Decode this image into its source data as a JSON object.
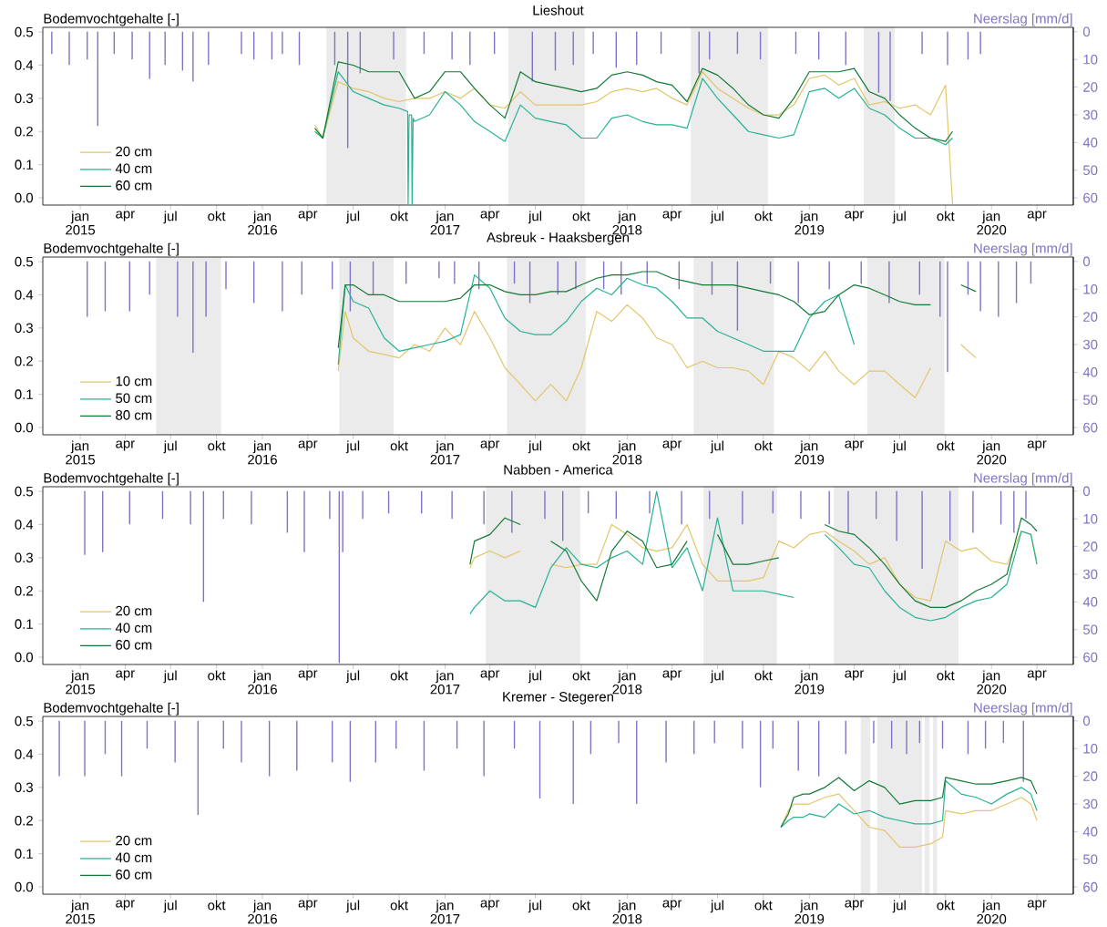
{
  "chart_data": [
    {
      "type": "line",
      "title": "Lieshout",
      "ylabel": "Bodemvochtgehalte [-]",
      "y2label": "Neerslag [mm/d]",
      "legend": "bottom left",
      "xlim": [
        "2014-10-18",
        "2020-06-13"
      ],
      "ylim": [
        -0.022,
        0.514
      ],
      "y2lim": [
        62.6,
        -1.6
      ],
      "xticks": [
        {
          "value": "2015-01",
          "label": "jan 2015"
        },
        {
          "value": "2015-04",
          "label": "apr"
        },
        {
          "value": "2015-07",
          "label": "jul"
        },
        {
          "value": "2015-10",
          "label": "okt"
        },
        {
          "value": "2016-01",
          "label": "jan 2016"
        },
        {
          "value": "2016-04",
          "label": "apr"
        },
        {
          "value": "2016-07",
          "label": "jul"
        },
        {
          "value": "2016-10",
          "label": "okt"
        },
        {
          "value": "2017-01",
          "label": "jan 2017"
        },
        {
          "value": "2017-04",
          "label": "apr"
        },
        {
          "value": "2017-07",
          "label": "jul"
        },
        {
          "value": "2017-10",
          "label": "okt"
        },
        {
          "value": "2018-01",
          "label": "jan 2018"
        },
        {
          "value": "2018-04",
          "label": "apr"
        },
        {
          "value": "2018-07",
          "label": "jul"
        },
        {
          "value": "2018-10",
          "label": "okt"
        },
        {
          "value": "2019-01",
          "label": "jan 2019"
        },
        {
          "value": "2019-04",
          "label": "apr"
        },
        {
          "value": "2019-07",
          "label": "jul"
        },
        {
          "value": "2019-10",
          "label": "okt"
        },
        {
          "value": "2020-01",
          "label": "jan 2020"
        },
        {
          "value": "2020-04",
          "label": "apr"
        }
      ],
      "yticks": [
        {
          "value": 0,
          "label": "0.0"
        },
        {
          "value": 0.1,
          "label": "0.1"
        },
        {
          "value": 0.2,
          "label": "0.2"
        },
        {
          "value": 0.3,
          "label": "0.3"
        },
        {
          "value": 0.4,
          "label": "0.4"
        },
        {
          "value": 0.5,
          "label": "0.5"
        }
      ],
      "y2ticks": [
        0,
        10,
        20,
        30,
        40,
        50,
        60
      ],
      "bands": [
        {
          "axis": "x",
          "from": "2016-05-08",
          "to": "2016-10-15",
          "color": "#ebebeb"
        },
        {
          "axis": "x",
          "from": "2017-05-08",
          "to": "2017-10-08",
          "color": "#ebebeb"
        },
        {
          "axis": "x",
          "from": "2018-05-08",
          "to": "2018-10-10",
          "color": "#ebebeb"
        },
        {
          "axis": "x",
          "from": "2019-04-20",
          "to": "2019-06-21",
          "color": "#ebebeb"
        }
      ],
      "x": [
        "2016-04-15",
        "2016-05",
        "2016-06",
        "2016-07",
        "2016-08",
        "2016-09",
        "2016-10",
        "2016-11",
        "2016-12",
        "2017-01",
        "2017-02",
        "2017-03",
        "2017-04",
        "2017-05",
        "2017-06",
        "2017-07",
        "2017-08",
        "2017-09",
        "2017-10",
        "2017-11",
        "2017-12",
        "2018-01",
        "2018-02",
        "2018-03",
        "2018-04",
        "2018-05",
        "2018-06",
        "2018-07",
        "2018-08",
        "2018-09",
        "2018-10",
        "2018-11",
        "2018-12",
        "2019-01",
        "2019-02",
        "2019-03",
        "2019-04",
        "2019-05",
        "2019-06",
        "2019-07",
        "2019-08",
        "2019-09",
        "2019-10",
        "2019-10-15"
      ],
      "series": [
        {
          "name": "20 cm",
          "color": "#e3c56a",
          "values": [
            0.22,
            0.18,
            0.35,
            0.33,
            0.32,
            0.3,
            0.29,
            0.3,
            0.3,
            0.32,
            0.3,
            0.33,
            0.28,
            0.27,
            0.32,
            0.28,
            0.28,
            0.28,
            0.28,
            0.29,
            0.32,
            0.33,
            0.32,
            0.33,
            0.3,
            0.28,
            0.38,
            0.33,
            0.3,
            0.27,
            0.25,
            0.25,
            0.28,
            0.36,
            0.37,
            0.34,
            0.36,
            0.28,
            0.29,
            0.27,
            0.28,
            0.25,
            0.34,
            -0.02
          ]
        },
        {
          "name": "40 cm",
          "color": "#26b294",
          "x": [
            "2016-04-15",
            "2016-05",
            "2016-06",
            "2016-07",
            "2016-08",
            "2016-09",
            "2016-10",
            "2016-10-18",
            "2016-10-19",
            "2016-10-21",
            "2016-10-26",
            "2016-10-27",
            "2016-10-29",
            "2016-11",
            "2016-12",
            "2017-01",
            "2017-02",
            "2017-03",
            "2017-04",
            "2017-05",
            "2017-06",
            "2017-07",
            "2017-08",
            "2017-09",
            "2017-10",
            "2017-11",
            "2017-12",
            "2018-01",
            "2018-02",
            "2018-03",
            "2018-04",
            "2018-05",
            "2018-06",
            "2018-07",
            "2018-08",
            "2018-09",
            "2018-10",
            "2018-11",
            "2018-12",
            "2019-01",
            "2019-02",
            "2019-03",
            "2019-04",
            "2019-05",
            "2019-06",
            "2019-07",
            "2019-08",
            "2019-09",
            "2019-10",
            "2019-10-15"
          ],
          "values": [
            0.2,
            0.18,
            0.38,
            0.32,
            0.3,
            0.28,
            0.27,
            0.26,
            -0.02,
            0.25,
            0.25,
            -0.02,
            0.24,
            0.23,
            0.25,
            0.32,
            0.28,
            0.23,
            0.2,
            0.17,
            0.28,
            0.24,
            0.23,
            0.22,
            0.18,
            0.18,
            0.24,
            0.25,
            0.23,
            0.22,
            0.22,
            0.21,
            0.36,
            0.3,
            0.25,
            0.2,
            0.19,
            0.18,
            0.19,
            0.32,
            0.33,
            0.3,
            0.33,
            0.27,
            0.25,
            0.21,
            0.18,
            0.18,
            0.16,
            0.18
          ]
        },
        {
          "name": "60 cm",
          "color": "#137a35",
          "values": [
            0.21,
            0.18,
            0.41,
            0.4,
            0.38,
            0.38,
            0.38,
            0.3,
            0.32,
            0.38,
            0.38,
            0.33,
            0.28,
            0.24,
            0.38,
            0.35,
            0.34,
            0.33,
            0.32,
            0.33,
            0.37,
            0.38,
            0.37,
            0.35,
            0.34,
            0.29,
            0.39,
            0.37,
            0.33,
            0.28,
            0.25,
            0.24,
            0.3,
            0.38,
            0.38,
            0.38,
            0.39,
            0.32,
            0.3,
            0.25,
            0.21,
            0.18,
            0.17,
            0.2
          ]
        },
        {
          "type": "bar",
          "axis": "y2",
          "color": "#7e74c4",
          "x": [
            "2014-11-05",
            "2014-12-10",
            "2015-01-15",
            "2015-02-05",
            "2015-03-10",
            "2015-04-15",
            "2015-05-20",
            "2015-06-20",
            "2015-07-25",
            "2015-08-15",
            "2015-09-15",
            "2015-11-20",
            "2015-12-15",
            "2016-01-20",
            "2016-02-10",
            "2016-03-15",
            "2016-05-25",
            "2016-06-20",
            "2016-07-15",
            "2016-09-20",
            "2016-11-20",
            "2017-01-15",
            "2017-02-20",
            "2017-04-10",
            "2017-06-25",
            "2017-08-10",
            "2017-09-15",
            "2017-10-25",
            "2017-12-10",
            "2018-01-20",
            "2018-03-10",
            "2018-05-25",
            "2018-06-15",
            "2018-08-10",
            "2018-09-25",
            "2018-12-05",
            "2019-01-20",
            "2019-03-15",
            "2019-05-20",
            "2019-06-12",
            "2019-08-15",
            "2019-10-05",
            "2019-11-15",
            "2019-12-10"
          ],
          "values": [
            8,
            12,
            10,
            34,
            8,
            10,
            17,
            12,
            14,
            18,
            12,
            8,
            10,
            10,
            8,
            12,
            12,
            42,
            15,
            10,
            8,
            10,
            12,
            8,
            18,
            14,
            12,
            8,
            13,
            12,
            8,
            15,
            10,
            8,
            10,
            8,
            10,
            12,
            22,
            25,
            8,
            12,
            10,
            8
          ]
        }
      ]
    },
    {
      "type": "line",
      "title": "Asbreuk - Haaksbergen",
      "ylabel": "Bodemvochtgehalte [-]",
      "y2label": "Neerslag [mm/d]",
      "legend": "bottom left",
      "xlim": [
        "2014-10-18",
        "2020-06-13"
      ],
      "ylim": [
        -0.022,
        0.514
      ],
      "y2lim": [
        62.6,
        -1.6
      ],
      "xticks": [
        {
          "value": "2015-01",
          "label": "jan 2015"
        },
        {
          "value": "2015-04",
          "label": "apr"
        },
        {
          "value": "2015-07",
          "label": "jul"
        },
        {
          "value": "2015-10",
          "label": "okt"
        },
        {
          "value": "2016-01",
          "label": "jan 2016"
        },
        {
          "value": "2016-04",
          "label": "apr"
        },
        {
          "value": "2016-07",
          "label": "jul"
        },
        {
          "value": "2016-10",
          "label": "okt"
        },
        {
          "value": "2017-01",
          "label": "jan 2017"
        },
        {
          "value": "2017-04",
          "label": "apr"
        },
        {
          "value": "2017-07",
          "label": "jul"
        },
        {
          "value": "2017-10",
          "label": "okt"
        },
        {
          "value": "2018-01",
          "label": "jan 2018"
        },
        {
          "value": "2018-04",
          "label": "apr"
        },
        {
          "value": "2018-07",
          "label": "jul"
        },
        {
          "value": "2018-10",
          "label": "okt"
        },
        {
          "value": "2019-01",
          "label": "jan 2019"
        },
        {
          "value": "2019-04",
          "label": "apr"
        },
        {
          "value": "2019-07",
          "label": "jul"
        },
        {
          "value": "2019-10",
          "label": "okt"
        },
        {
          "value": "2020-01",
          "label": "jan 2020"
        },
        {
          "value": "2020-04",
          "label": "apr"
        }
      ],
      "yticks": [
        {
          "value": 0,
          "label": "0.0"
        },
        {
          "value": 0.1,
          "label": "0.1"
        },
        {
          "value": 0.2,
          "label": "0.2"
        },
        {
          "value": 0.3,
          "label": "0.3"
        },
        {
          "value": 0.4,
          "label": "0.4"
        },
        {
          "value": 0.5,
          "label": "0.5"
        }
      ],
      "y2ticks": [
        0,
        10,
        20,
        30,
        40,
        50,
        60
      ],
      "bands": [
        {
          "axis": "x",
          "from": "2015-06-02",
          "to": "2015-10-10",
          "color": "#ebebeb"
        },
        {
          "axis": "x",
          "from": "2016-06-03",
          "to": "2016-09-20",
          "color": "#ebebeb"
        },
        {
          "axis": "x",
          "from": "2017-05-05",
          "to": "2017-10-10",
          "color": "#ebebeb"
        },
        {
          "axis": "x",
          "from": "2018-05-14",
          "to": "2018-10-22",
          "color": "#ebebeb"
        },
        {
          "axis": "x",
          "from": "2019-04-27",
          "to": "2019-09-29",
          "color": "#ebebeb"
        }
      ],
      "x": [
        "2016-06",
        "2016-06-15",
        "2016-07",
        "2016-08",
        "2016-09",
        "2016-10",
        "2016-11",
        "2016-12",
        "2017-01",
        "2017-02",
        "2017-03",
        "2017-04",
        "2017-05",
        "2017-06",
        "2017-07",
        "2017-08",
        "2017-09",
        "2017-10",
        "2017-11",
        "2017-12",
        "2018-01",
        "2018-02",
        "2018-03",
        "2018-04",
        "2018-05",
        "2018-06",
        "2018-07",
        "2018-08",
        "2018-09",
        "2018-10",
        "2018-11",
        "2018-12",
        "2019-01",
        "2019-02",
        "2019-03",
        "2019-04",
        "2019-05",
        "2019-06",
        "2019-07",
        "2019-08",
        "2019-09",
        "2019-10",
        "2019-11",
        "2019-12"
      ],
      "series": [
        {
          "name": "10 cm",
          "color": "#e3c56a",
          "values": [
            0.17,
            0.35,
            0.27,
            0.23,
            0.22,
            0.21,
            0.25,
            0.23,
            0.3,
            0.25,
            0.35,
            0.27,
            0.18,
            0.13,
            0.08,
            0.13,
            0.08,
            0.18,
            0.35,
            0.32,
            0.37,
            0.33,
            0.27,
            0.25,
            0.18,
            0.2,
            0.18,
            0.18,
            0.17,
            0.13,
            0.23,
            0.21,
            0.17,
            0.23,
            0.17,
            0.13,
            0.17,
            0.17,
            0.13,
            0.09,
            0.18,
            null,
            0.25,
            0.21
          ]
        },
        {
          "name": "50 cm",
          "color": "#26b294",
          "values": [
            0.19,
            0.43,
            0.38,
            0.36,
            0.27,
            0.23,
            0.24,
            0.25,
            0.26,
            0.28,
            0.46,
            0.42,
            0.33,
            0.29,
            0.28,
            0.28,
            0.32,
            0.38,
            0.42,
            0.4,
            0.45,
            0.43,
            0.42,
            0.38,
            0.33,
            0.33,
            0.29,
            0.27,
            0.25,
            0.23,
            0.23,
            0.23,
            0.33,
            0.38,
            0.4,
            0.25,
            null,
            null,
            null,
            null,
            null,
            null,
            null,
            null
          ]
        },
        {
          "name": "80 cm",
          "color": "#137a35",
          "values": [
            0.24,
            0.43,
            0.43,
            0.4,
            0.4,
            0.38,
            0.38,
            0.38,
            0.38,
            0.39,
            0.43,
            0.43,
            0.41,
            0.4,
            0.4,
            0.41,
            0.41,
            0.43,
            0.45,
            0.46,
            0.46,
            0.47,
            0.47,
            0.45,
            0.44,
            0.43,
            0.43,
            0.43,
            0.42,
            0.41,
            0.4,
            0.38,
            0.34,
            0.35,
            0.4,
            0.43,
            0.42,
            0.4,
            0.38,
            0.37,
            0.37,
            null,
            0.43,
            0.41
          ]
        },
        {
          "type": "bar",
          "axis": "y2",
          "color": "#7e74c4",
          "x": [
            "2015-01-15",
            "2015-02-20",
            "2015-04-10",
            "2015-05-20",
            "2015-07-15",
            "2015-08-15",
            "2015-09-10",
            "2015-10-20",
            "2015-12-15",
            "2016-02-10",
            "2016-03-20",
            "2016-05-20",
            "2016-06-25",
            "2016-08-10",
            "2016-10-15",
            "2016-12-20",
            "2017-01-20",
            "2017-03-10",
            "2017-05-20",
            "2017-06-20",
            "2017-08-15",
            "2017-09-20",
            "2017-11-15",
            "2017-12-20",
            "2018-02-10",
            "2018-04-15",
            "2018-06-20",
            "2018-08-10",
            "2018-10-15",
            "2018-12-10",
            "2019-02-10",
            "2019-04-15",
            "2019-06-10",
            "2019-08-10",
            "2019-09-20",
            "2019-10-05",
            "2019-11-15",
            "2019-12-10",
            "2020-01-15",
            "2020-02-20",
            "2020-03-20"
          ],
          "values": [
            20,
            18,
            18,
            12,
            20,
            33,
            20,
            10,
            15,
            18,
            12,
            10,
            18,
            12,
            8,
            6,
            8,
            10,
            8,
            15,
            12,
            10,
            10,
            12,
            8,
            10,
            12,
            25,
            8,
            15,
            10,
            8,
            15,
            12,
            20,
            40,
            12,
            18,
            20,
            15,
            8
          ]
        }
      ]
    },
    {
      "type": "line",
      "title": "Nabben - America",
      "ylabel": "Bodemvochtgehalte [-]",
      "y2label": "Neerslag [mm/d]",
      "legend": "bottom left",
      "xlim": [
        "2014-10-18",
        "2020-06-13"
      ],
      "ylim": [
        -0.022,
        0.514
      ],
      "y2lim": [
        62.6,
        -1.6
      ],
      "xticks": [
        {
          "value": "2015-01",
          "label": "jan 2015"
        },
        {
          "value": "2015-04",
          "label": "apr"
        },
        {
          "value": "2015-07",
          "label": "jul"
        },
        {
          "value": "2015-10",
          "label": "okt"
        },
        {
          "value": "2016-01",
          "label": "jan 2016"
        },
        {
          "value": "2016-04",
          "label": "apr"
        },
        {
          "value": "2016-07",
          "label": "jul"
        },
        {
          "value": "2016-10",
          "label": "okt"
        },
        {
          "value": "2017-01",
          "label": "jan 2017"
        },
        {
          "value": "2017-04",
          "label": "apr"
        },
        {
          "value": "2017-07",
          "label": "jul"
        },
        {
          "value": "2017-10",
          "label": "okt"
        },
        {
          "value": "2018-01",
          "label": "jan 2018"
        },
        {
          "value": "2018-04",
          "label": "apr"
        },
        {
          "value": "2018-07",
          "label": "jul"
        },
        {
          "value": "2018-10",
          "label": "okt"
        },
        {
          "value": "2019-01",
          "label": "jan 2019"
        },
        {
          "value": "2019-04",
          "label": "apr"
        },
        {
          "value": "2019-07",
          "label": "jul"
        },
        {
          "value": "2019-10",
          "label": "okt"
        },
        {
          "value": "2020-01",
          "label": "jan 2020"
        },
        {
          "value": "2020-04",
          "label": "apr"
        }
      ],
      "yticks": [
        {
          "value": 0,
          "label": "0.0"
        },
        {
          "value": 0.1,
          "label": "0.1"
        },
        {
          "value": 0.2,
          "label": "0.2"
        },
        {
          "value": 0.3,
          "label": "0.3"
        },
        {
          "value": 0.4,
          "label": "0.4"
        },
        {
          "value": 0.5,
          "label": "0.5"
        }
      ],
      "y2ticks": [
        0,
        10,
        20,
        30,
        40,
        50,
        60
      ],
      "bands": [
        {
          "axis": "x",
          "from": "2017-03-24",
          "to": "2017-09-29",
          "color": "#ebebeb"
        },
        {
          "axis": "x",
          "from": "2018-06-03",
          "to": "2018-10-28",
          "color": "#ebebeb"
        },
        {
          "axis": "x",
          "from": "2019-02-19",
          "to": "2019-10-27",
          "color": "#ebebeb"
        }
      ],
      "x": [
        "2017-02-20",
        "2017-03",
        "2017-04",
        "2017-05",
        "2017-06",
        "2017-07",
        "2017-08",
        "2017-09",
        "2017-10",
        "2017-11",
        "2017-12",
        "2018-01",
        "2018-02",
        "2018-03",
        "2018-04",
        "2018-05",
        "2018-06",
        "2018-07",
        "2018-08",
        "2018-09",
        "2018-10",
        "2018-11",
        "2018-12",
        "2019-01",
        "2019-02",
        "2019-03",
        "2019-04",
        "2019-05",
        "2019-06",
        "2019-07",
        "2019-08",
        "2019-09",
        "2019-10",
        "2019-11",
        "2019-12",
        "2020-01",
        "2020-02",
        "2020-03",
        "2020-03-20",
        "2020-04"
      ],
      "series": [
        {
          "name": "20 cm",
          "color": "#e3c56a",
          "values": [
            0.27,
            0.3,
            0.32,
            0.3,
            0.32,
            null,
            0.28,
            0.27,
            0.28,
            0.28,
            0.4,
            0.37,
            0.33,
            0.32,
            0.33,
            0.4,
            0.28,
            0.23,
            0.23,
            0.23,
            0.24,
            0.35,
            0.33,
            0.37,
            0.38,
            0.35,
            0.32,
            0.28,
            0.3,
            0.22,
            0.18,
            0.17,
            0.35,
            0.32,
            0.33,
            0.29,
            0.28,
            0.38,
            0.37,
            0.29
          ]
        },
        {
          "name": "40 cm",
          "color": "#26b294",
          "values": [
            0.13,
            0.15,
            0.2,
            0.17,
            0.17,
            0.15,
            0.27,
            0.33,
            0.28,
            0.27,
            0.3,
            0.32,
            0.28,
            0.5,
            0.27,
            0.33,
            0.2,
            0.42,
            0.2,
            0.2,
            0.2,
            0.19,
            0.18,
            null,
            0.37,
            0.33,
            0.28,
            0.27,
            0.2,
            0.15,
            0.12,
            0.11,
            0.12,
            0.15,
            0.17,
            0.18,
            0.22,
            0.38,
            0.37,
            0.28
          ]
        },
        {
          "name": "60 cm",
          "color": "#137a35",
          "values": [
            0.28,
            0.35,
            0.37,
            0.42,
            0.4,
            null,
            0.35,
            0.32,
            0.23,
            0.17,
            0.32,
            0.38,
            0.35,
            0.27,
            0.28,
            0.35,
            null,
            0.37,
            0.28,
            0.28,
            0.29,
            0.3,
            null,
            null,
            0.4,
            0.38,
            0.37,
            0.33,
            0.28,
            0.22,
            0.17,
            0.15,
            0.15,
            0.17,
            0.2,
            0.22,
            0.25,
            0.42,
            0.4,
            0.38
          ]
        },
        {
          "type": "bar",
          "axis": "y2",
          "color": "#7e74c4",
          "x": [
            "2015-01-10",
            "2015-02-15",
            "2015-04-10",
            "2015-06-15",
            "2015-08-10",
            "2015-09-05",
            "2015-10-15",
            "2015-12-10",
            "2016-02-20",
            "2016-03-25",
            "2016-05-15",
            "2016-06-03",
            "2016-06-10",
            "2016-07-20",
            "2016-09-10",
            "2016-11-15",
            "2017-01-15",
            "2017-03-20",
            "2017-05-15",
            "2017-07-20",
            "2017-08-25",
            "2017-10-15",
            "2017-12-10",
            "2018-02-15",
            "2018-04-20",
            "2018-06-15",
            "2018-08-20",
            "2018-10-20",
            "2018-12-15",
            "2019-02-10",
            "2019-03-20",
            "2019-05-15",
            "2019-06-25",
            "2019-08-15",
            "2019-10-10",
            "2019-11-25",
            "2020-01-20",
            "2020-02-15",
            "2020-03-10"
          ],
          "values": [
            23,
            22,
            12,
            10,
            12,
            40,
            10,
            12,
            15,
            22,
            10,
            62,
            22,
            10,
            8,
            8,
            10,
            12,
            15,
            10,
            18,
            8,
            10,
            8,
            12,
            10,
            12,
            8,
            10,
            12,
            15,
            10,
            18,
            28,
            18,
            15,
            12,
            15,
            10
          ]
        }
      ]
    },
    {
      "type": "line",
      "title": "Kremer - Stegeren",
      "ylabel": "Bodemvochtgehalte [-]",
      "y2label": "Neerslag [mm/d]",
      "legend": "bottom left",
      "xlim": [
        "2014-10-18",
        "2020-06-13"
      ],
      "ylim": [
        -0.022,
        0.514
      ],
      "y2lim": [
        62.6,
        -1.6
      ],
      "xticks": [
        {
          "value": "2015-01",
          "label": "jan 2015"
        },
        {
          "value": "2015-04",
          "label": "apr"
        },
        {
          "value": "2015-07",
          "label": "jul"
        },
        {
          "value": "2015-10",
          "label": "okt"
        },
        {
          "value": "2016-01",
          "label": "jan 2016"
        },
        {
          "value": "2016-04",
          "label": "apr"
        },
        {
          "value": "2016-07",
          "label": "jul"
        },
        {
          "value": "2016-10",
          "label": "okt"
        },
        {
          "value": "2017-01",
          "label": "jan 2017"
        },
        {
          "value": "2017-04",
          "label": "apr"
        },
        {
          "value": "2017-07",
          "label": "jul"
        },
        {
          "value": "2017-10",
          "label": "okt"
        },
        {
          "value": "2018-01",
          "label": "jan 2018"
        },
        {
          "value": "2018-04",
          "label": "apr"
        },
        {
          "value": "2018-07",
          "label": "jul"
        },
        {
          "value": "2018-10",
          "label": "okt"
        },
        {
          "value": "2019-01",
          "label": "jan 2019"
        },
        {
          "value": "2019-04",
          "label": "apr"
        },
        {
          "value": "2019-07",
          "label": "jul"
        },
        {
          "value": "2019-10",
          "label": "okt"
        },
        {
          "value": "2020-01",
          "label": "jan 2020"
        },
        {
          "value": "2020-04",
          "label": "apr"
        }
      ],
      "yticks": [
        {
          "value": 0,
          "label": "0.0"
        },
        {
          "value": 0.1,
          "label": "0.1"
        },
        {
          "value": 0.2,
          "label": "0.2"
        },
        {
          "value": 0.3,
          "label": "0.3"
        },
        {
          "value": 0.4,
          "label": "0.4"
        },
        {
          "value": 0.5,
          "label": "0.5"
        }
      ],
      "y2ticks": [
        0,
        10,
        20,
        30,
        40,
        50,
        60
      ],
      "bands": [
        {
          "axis": "x",
          "from": "2019-04-14",
          "to": "2019-05-03",
          "color": "#ebebeb"
        },
        {
          "axis": "x",
          "from": "2019-05-17",
          "to": "2019-08-15",
          "color": "#ebebeb"
        },
        {
          "axis": "x",
          "from": "2019-08-20",
          "to": "2019-08-30",
          "color": "#ebebeb"
        },
        {
          "axis": "x",
          "from": "2019-09-06",
          "to": "2019-09-14",
          "color": "#ebebeb"
        }
      ],
      "x": [
        "2018-11-05",
        "2018-11-20",
        "2018-12",
        "2018-12-20",
        "2019-01",
        "2019-02",
        "2019-03",
        "2019-04",
        "2019-05",
        "2019-06",
        "2019-07",
        "2019-08",
        "2019-09",
        "2019-09-25",
        "2019-10",
        "2019-11",
        "2019-12",
        "2020-01",
        "2020-02",
        "2020-03",
        "2020-03-20",
        "2020-04"
      ],
      "series": [
        {
          "name": "20 cm",
          "color": "#e3c56a",
          "values": [
            0.18,
            0.23,
            0.25,
            0.25,
            0.25,
            0.27,
            0.28,
            0.23,
            0.18,
            0.17,
            0.12,
            0.12,
            0.13,
            0.15,
            0.23,
            0.22,
            0.23,
            0.23,
            0.25,
            0.27,
            0.25,
            0.2
          ]
        },
        {
          "name": "40 cm",
          "color": "#26b294",
          "values": [
            0.18,
            0.2,
            0.21,
            0.21,
            0.22,
            0.21,
            0.25,
            0.22,
            0.23,
            0.21,
            0.2,
            0.19,
            0.19,
            0.2,
            0.32,
            0.28,
            0.27,
            0.25,
            0.28,
            0.3,
            0.28,
            0.23
          ]
        },
        {
          "name": "60 cm",
          "color": "#137a35",
          "values": [
            0.18,
            0.22,
            0.27,
            0.28,
            0.28,
            0.3,
            0.33,
            0.29,
            0.32,
            0.3,
            0.25,
            0.26,
            0.26,
            0.27,
            0.33,
            0.32,
            0.31,
            0.31,
            0.32,
            0.33,
            0.32,
            0.28
          ]
        },
        {
          "type": "bar",
          "axis": "y2",
          "color": "#7e74c4",
          "x": [
            "2014-11-20",
            "2015-01-10",
            "2015-02-20",
            "2015-03-25",
            "2015-05-15",
            "2015-07-10",
            "2015-08-25",
            "2015-10-15",
            "2015-11-20",
            "2016-01-15",
            "2016-03-10",
            "2016-05-20",
            "2016-06-25",
            "2016-08-15",
            "2016-09-25",
            "2016-11-20",
            "2017-01-25",
            "2017-03-20",
            "2017-05-20",
            "2017-07-10",
            "2017-09-15",
            "2017-10-20",
            "2017-12-15",
            "2018-01-20",
            "2018-03-20",
            "2018-05-15",
            "2018-06-25",
            "2018-08-20",
            "2018-09-25",
            "2018-10-20",
            "2018-12-10",
            "2019-01-20",
            "2019-03-15",
            "2019-05-10",
            "2019-06-15",
            "2019-07-15",
            "2019-08-10",
            "2019-09-25",
            "2019-11-15",
            "2019-12-20",
            "2020-01-25",
            "2020-03-05"
          ],
          "values": [
            20,
            20,
            12,
            20,
            10,
            15,
            34,
            10,
            15,
            20,
            18,
            15,
            22,
            15,
            10,
            18,
            10,
            20,
            10,
            28,
            30,
            12,
            8,
            30,
            15,
            12,
            8,
            10,
            24,
            10,
            18,
            20,
            12,
            8,
            10,
            12,
            8,
            10,
            12,
            10,
            8,
            22
          ]
        }
      ]
    }
  ]
}
